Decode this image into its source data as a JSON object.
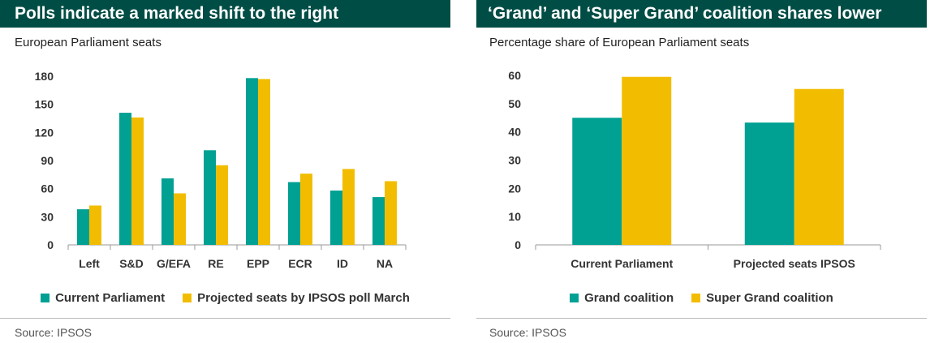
{
  "charts": [
    {
      "title": "Polls indicate a marked shift to the right",
      "subtitle": "European Parliament seats",
      "source": "Source: IPSOS",
      "series_colors": [
        "#00a093",
        "#f2bd00"
      ]
    },
    {
      "title": "‘Grand’ and ‘Super Grand’ coalition shares lower",
      "subtitle": "Percentage share of European Parliament seats",
      "source": "Source: IPSOS",
      "series_colors": [
        "#00a093",
        "#f2bd00"
      ]
    }
  ],
  "chart_data": [
    {
      "type": "bar",
      "title": "Polls indicate a marked shift to the right",
      "ylabel": "European Parliament seats",
      "categories": [
        "Left",
        "S&D",
        "G/EFA",
        "RE",
        "EPP",
        "ECR",
        "ID",
        "NA"
      ],
      "series": [
        {
          "name": "Current Parliament",
          "values": [
            38,
            141,
            71,
            101,
            178,
            67,
            58,
            51
          ]
        },
        {
          "name": "Projected seats by IPSOS poll March",
          "values": [
            42,
            136,
            55,
            85,
            177,
            76,
            81,
            68
          ]
        }
      ],
      "ylim": [
        0,
        180
      ],
      "yticks": [
        0,
        30,
        60,
        90,
        120,
        150,
        180
      ],
      "legend": "bottom"
    },
    {
      "type": "bar",
      "title": "‘Grand’ and ‘Super Grand’ coalition shares lower",
      "ylabel": "Percentage share of European Parliament seats",
      "categories": [
        "Current Parliament",
        "Projected seats IPSOS"
      ],
      "series": [
        {
          "name": "Grand coalition",
          "values": [
            45,
            43.3
          ]
        },
        {
          "name": "Super Grand coalition",
          "values": [
            59.5,
            55.2
          ]
        }
      ],
      "ylim": [
        0,
        60
      ],
      "yticks": [
        0,
        10,
        20,
        30,
        40,
        50,
        60
      ],
      "legend": "bottom"
    }
  ]
}
